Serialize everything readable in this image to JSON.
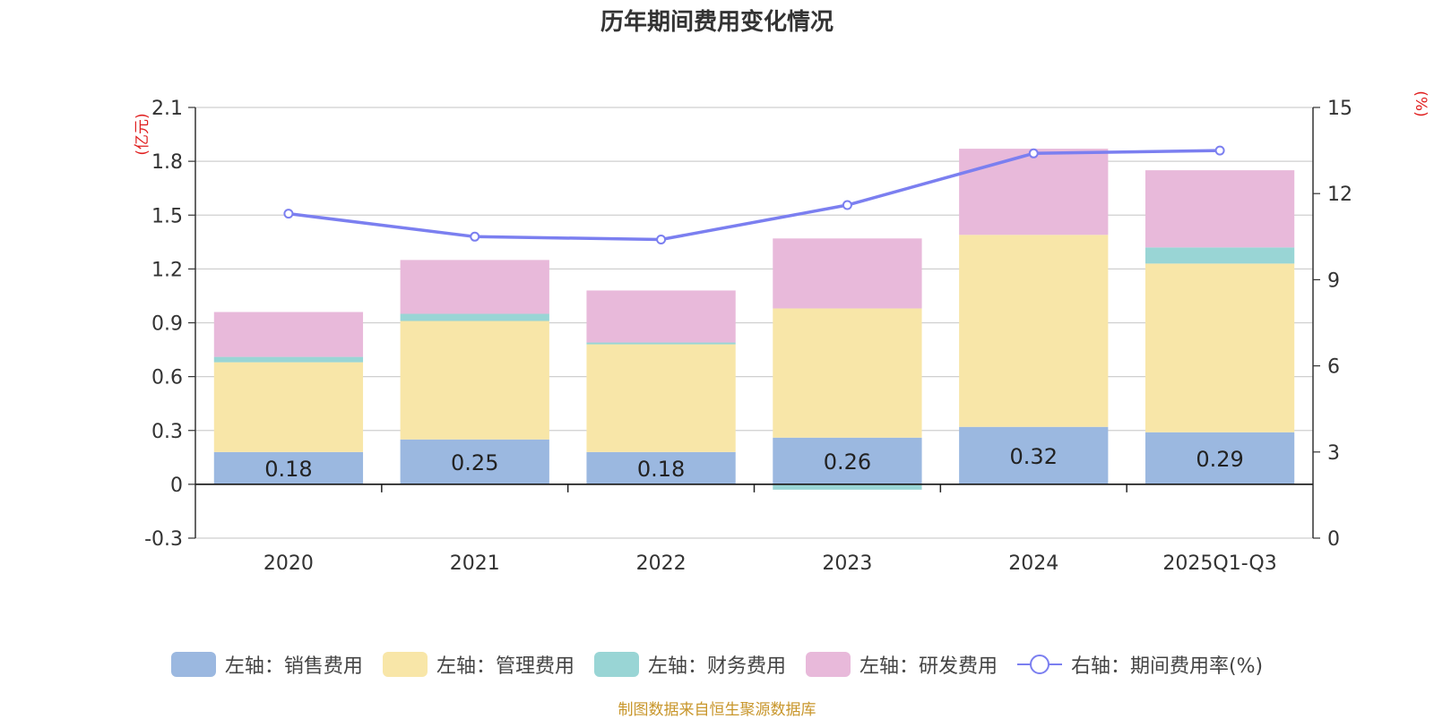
{
  "chart_data": {
    "type": "bar",
    "title": "历年期间费用变化情况",
    "categories": [
      "2020",
      "2021",
      "2022",
      "2023",
      "2024",
      "2025Q1-Q3"
    ],
    "left_axis": {
      "unit_label": "(亿元)",
      "ylim": [
        -0.3,
        2.1
      ],
      "ticks": [
        "2.1",
        "1.8",
        "1.5",
        "1.2",
        "0.9",
        "0.6",
        "0.3",
        "0",
        "-0.3"
      ]
    },
    "right_axis": {
      "unit_label": "(%)",
      "ylim": [
        0,
        15
      ],
      "ticks": [
        "15",
        "12",
        "9",
        "6",
        "3",
        "0"
      ]
    },
    "series": [
      {
        "name": "左轴：销售费用",
        "type": "bar",
        "color": "#9bb8e0",
        "values": [
          0.18,
          0.25,
          0.18,
          0.26,
          0.32,
          0.29
        ],
        "labels": [
          "0.18",
          "0.25",
          "0.18",
          "0.26",
          "0.32",
          "0.29"
        ]
      },
      {
        "name": "左轴：管理费用",
        "type": "bar",
        "color": "#f8e6a8",
        "values": [
          0.5,
          0.66,
          0.6,
          0.72,
          1.07,
          0.94
        ]
      },
      {
        "name": "左轴：财务费用",
        "type": "bar",
        "color": "#99d5d5",
        "values": [
          0.03,
          0.04,
          0.01,
          -0.03,
          0.0,
          0.09
        ]
      },
      {
        "name": "左轴：研发费用",
        "type": "bar",
        "color": "#e8b9da",
        "values": [
          0.25,
          0.3,
          0.29,
          0.39,
          0.48,
          0.43
        ]
      },
      {
        "name": "右轴：期间费用率(%)",
        "type": "line",
        "color": "#7b7ff0",
        "values": [
          11.3,
          10.5,
          10.4,
          11.6,
          13.4,
          13.5
        ]
      }
    ],
    "source": "制图数据来自恒生聚源数据库"
  }
}
